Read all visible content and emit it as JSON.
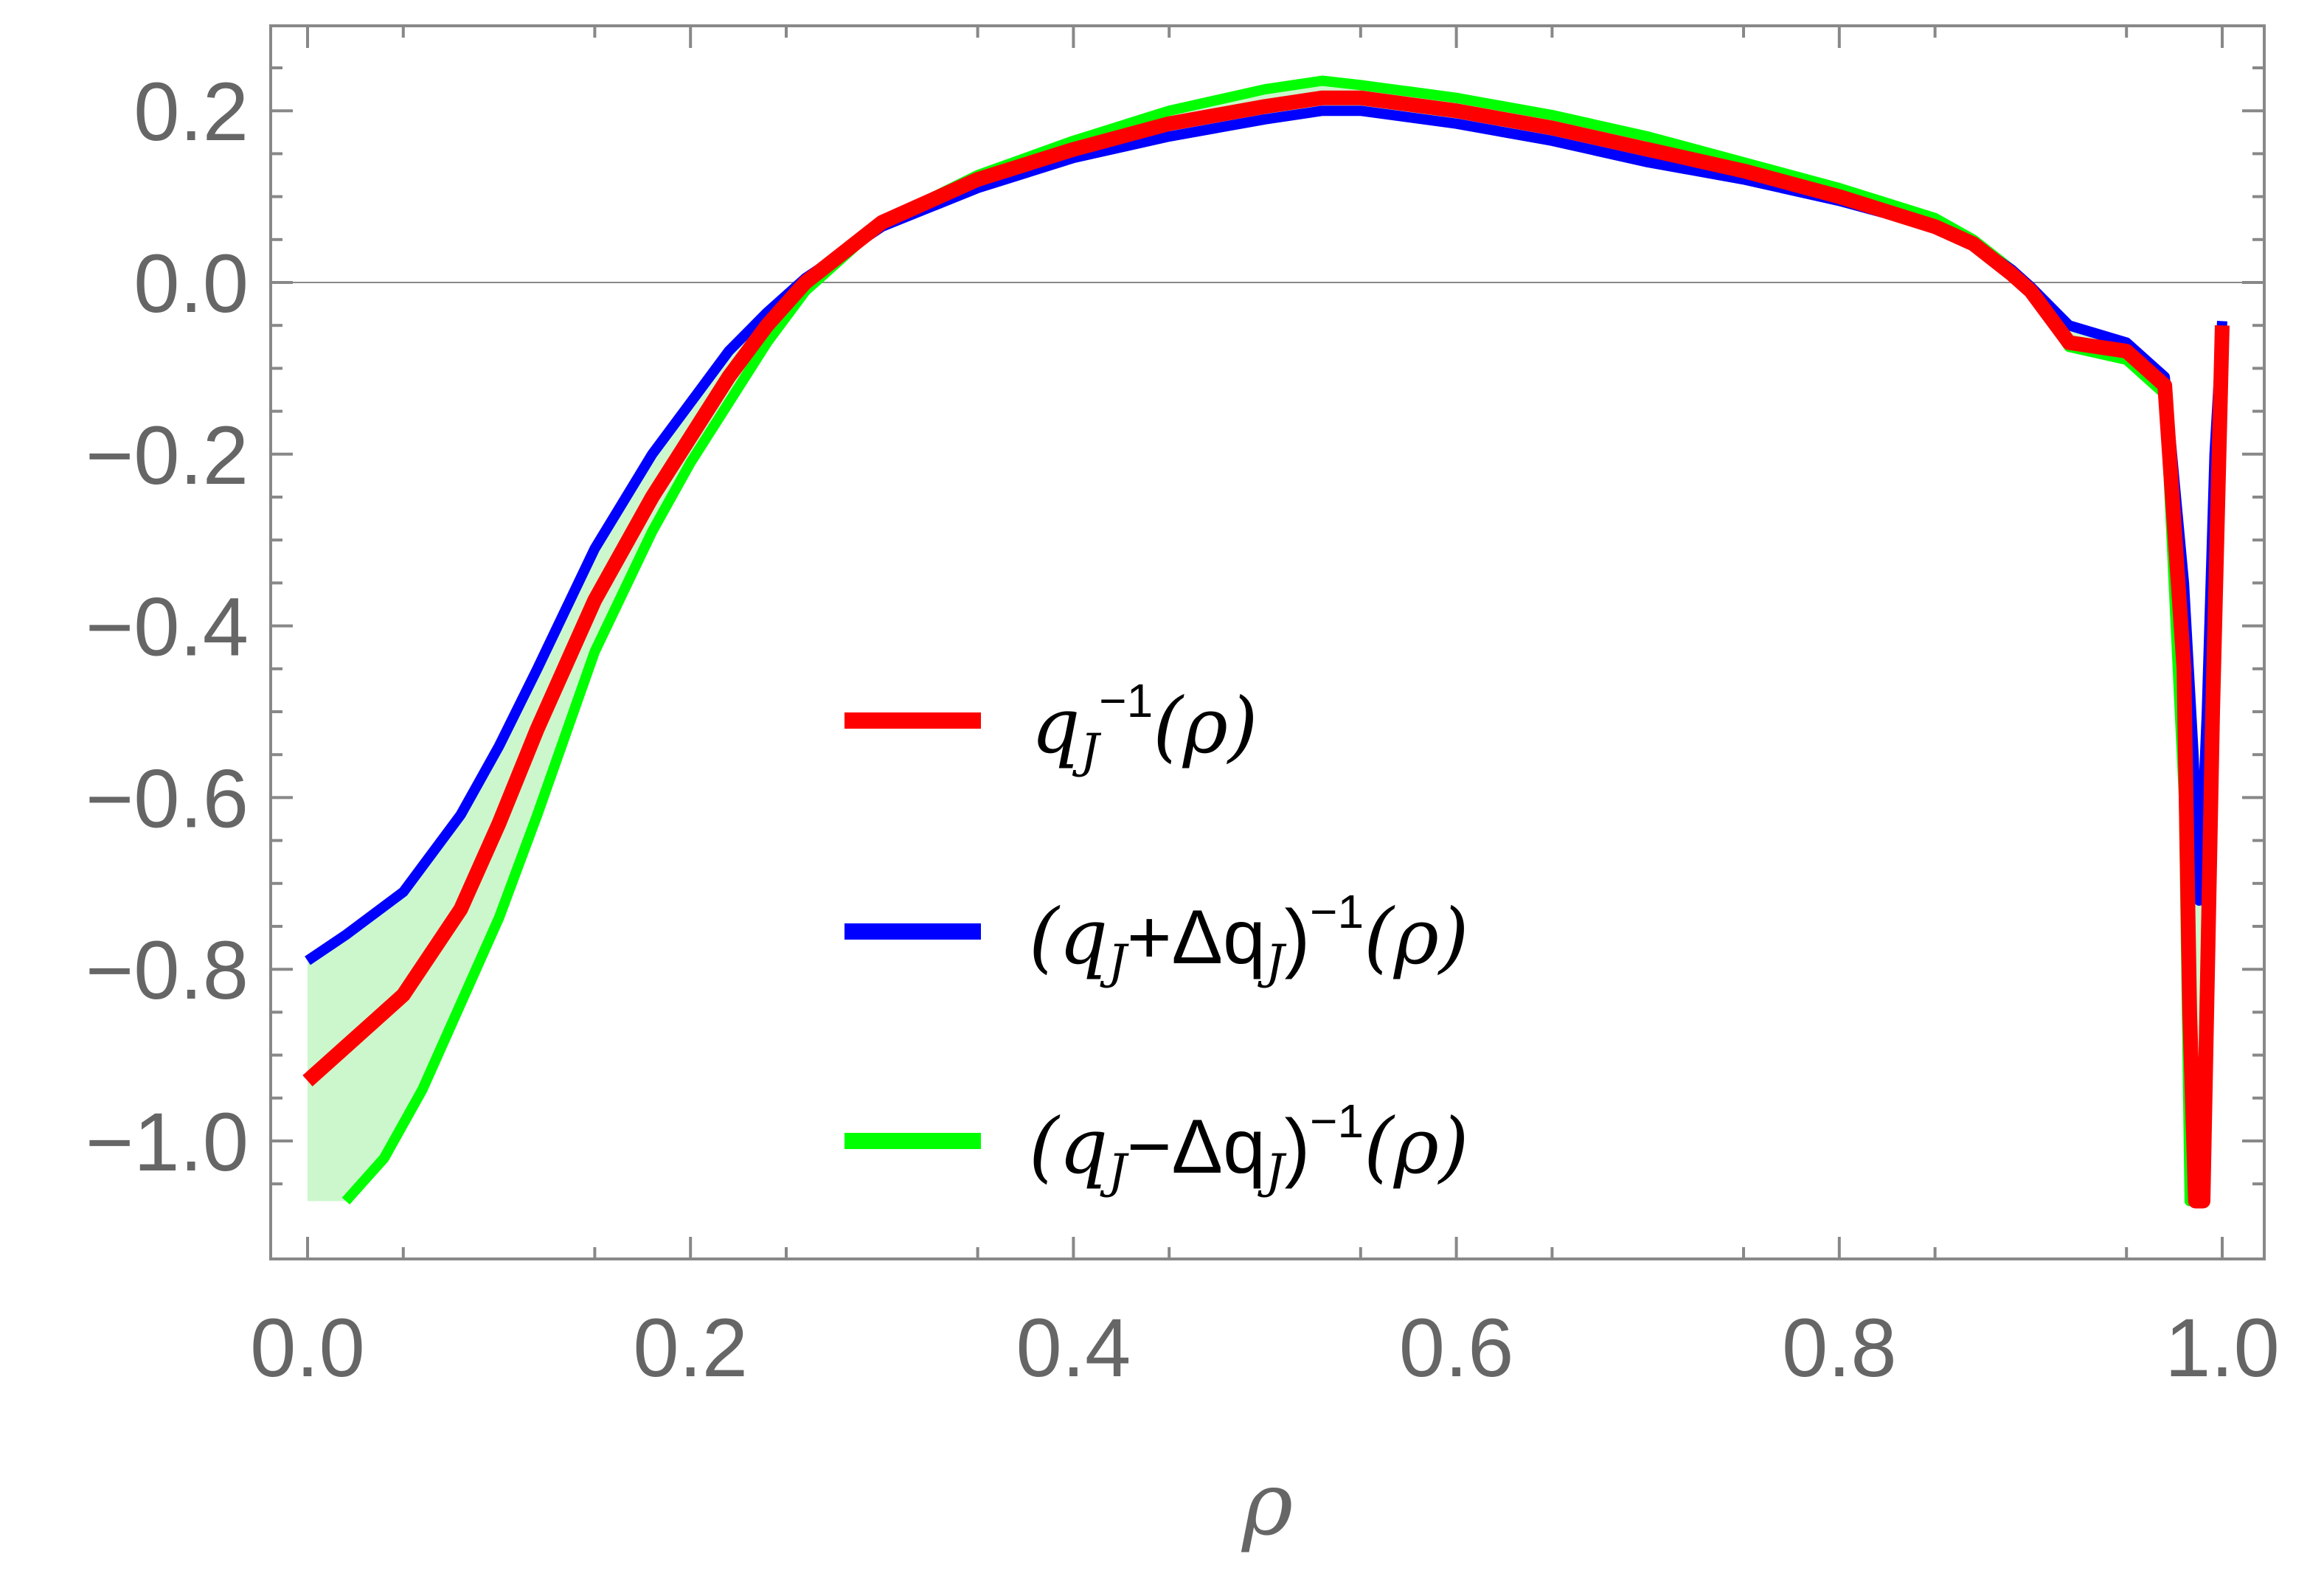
{
  "chart_data": {
    "type": "line",
    "xlabel": "ρ",
    "ylabel": "",
    "xlim": [
      0,
      1
    ],
    "ylim": [
      -1.13,
      0.3
    ],
    "x_ticks": [
      0,
      0.2,
      0.4,
      0.6,
      0.8,
      1.0
    ],
    "x_tick_labels": [
      "0.0",
      "0.2",
      "0.4",
      "0.6",
      "0.8",
      "1.0"
    ],
    "y_ticks": [
      0.2,
      0.0,
      -0.2,
      -0.4,
      -0.6,
      -0.8,
      -1.0
    ],
    "y_tick_labels": [
      "0.2",
      "0.0",
      "−0.2",
      "−0.4",
      "−0.6",
      "−0.8",
      "−1.0"
    ],
    "grid": false,
    "zero_line": true,
    "legend_position": "center-right",
    "shaded_band": {
      "between": [
        "upper",
        "lower"
      ],
      "color": "#ccf7cc"
    },
    "series": [
      {
        "key": "nominal",
        "legend_main": "q",
        "legend_sub": "J",
        "legend_sup": "−1",
        "legend_tail": "(ρ)",
        "color": "#ff0000",
        "x": [
          0,
          0.02,
          0.05,
          0.08,
          0.1,
          0.12,
          0.15,
          0.18,
          0.2,
          0.22,
          0.24,
          0.26,
          0.3,
          0.35,
          0.4,
          0.45,
          0.5,
          0.53,
          0.55,
          0.6,
          0.65,
          0.7,
          0.75,
          0.8,
          0.85,
          0.87,
          0.89,
          0.9,
          0.92,
          0.95,
          0.97,
          0.98,
          0.983,
          0.986,
          0.99,
          0.995,
          1.0
        ],
        "y": [
          -0.93,
          -0.89,
          -0.83,
          -0.73,
          -0.63,
          -0.52,
          -0.37,
          -0.25,
          -0.18,
          -0.11,
          -0.05,
          0.0,
          0.07,
          0.12,
          0.155,
          0.185,
          0.205,
          0.215,
          0.215,
          0.2,
          0.18,
          0.155,
          0.13,
          0.1,
          0.065,
          0.045,
          0.01,
          -0.01,
          -0.07,
          -0.08,
          -0.12,
          -0.45,
          -0.85,
          -1.07,
          -1.07,
          -0.5,
          -0.05
        ]
      },
      {
        "key": "upper",
        "legend_main": "(q",
        "legend_sub": "J",
        "legend_mid": "+Δq",
        "legend_sub2": "J",
        "legend_close": ")",
        "legend_sup": "−1",
        "legend_tail": "(ρ)",
        "color": "#0000ff",
        "x": [
          0,
          0.02,
          0.05,
          0.08,
          0.1,
          0.12,
          0.15,
          0.18,
          0.2,
          0.22,
          0.24,
          0.26,
          0.3,
          0.35,
          0.4,
          0.45,
          0.5,
          0.53,
          0.55,
          0.6,
          0.65,
          0.7,
          0.75,
          0.8,
          0.85,
          0.87,
          0.89,
          0.9,
          0.92,
          0.95,
          0.97,
          0.98,
          0.985,
          0.988,
          0.992,
          0.996,
          1.0
        ],
        "y": [
          -0.79,
          -0.76,
          -0.71,
          -0.62,
          -0.54,
          -0.45,
          -0.31,
          -0.2,
          -0.14,
          -0.08,
          -0.035,
          0.005,
          0.065,
          0.11,
          0.145,
          0.17,
          0.19,
          0.2,
          0.2,
          0.185,
          0.165,
          0.14,
          0.12,
          0.095,
          0.065,
          0.045,
          0.015,
          -0.005,
          -0.05,
          -0.07,
          -0.11,
          -0.35,
          -0.55,
          -0.72,
          -0.5,
          -0.2,
          -0.045
        ]
      },
      {
        "key": "lower",
        "legend_main": "(q",
        "legend_sub": "J",
        "legend_mid": "−Δq",
        "legend_sub2": "J",
        "legend_close": ")",
        "legend_sup": "−1",
        "legend_tail": "(ρ)",
        "color": "#00ff00",
        "x": [
          0.02,
          0.04,
          0.06,
          0.08,
          0.1,
          0.12,
          0.15,
          0.18,
          0.2,
          0.22,
          0.24,
          0.26,
          0.3,
          0.35,
          0.4,
          0.45,
          0.5,
          0.53,
          0.55,
          0.6,
          0.65,
          0.7,
          0.75,
          0.8,
          0.85,
          0.87,
          0.89,
          0.9,
          0.92,
          0.95,
          0.97,
          0.98,
          0.983,
          0.986,
          0.99,
          0.995,
          1.0
        ],
        "y": [
          -1.07,
          -1.02,
          -0.94,
          -0.84,
          -0.74,
          -0.62,
          -0.43,
          -0.29,
          -0.21,
          -0.14,
          -0.07,
          -0.01,
          0.07,
          0.125,
          0.165,
          0.2,
          0.225,
          0.235,
          0.23,
          0.215,
          0.195,
          0.17,
          0.14,
          0.11,
          0.075,
          0.05,
          0.015,
          -0.01,
          -0.075,
          -0.09,
          -0.13,
          -0.6,
          -1.07,
          -1.07,
          -1.07,
          -0.6,
          -0.05
        ]
      }
    ]
  }
}
